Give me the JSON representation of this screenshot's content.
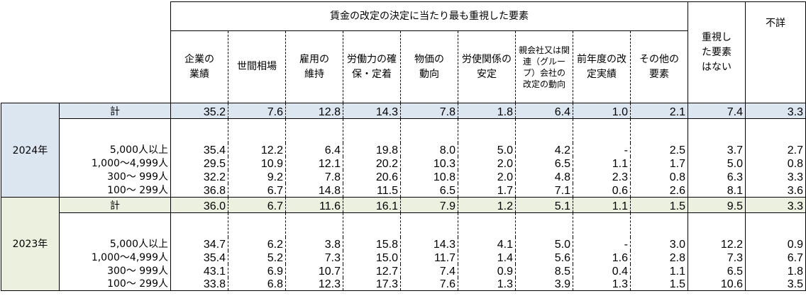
{
  "header": {
    "group_title": "賃金の改定の決定に当たり最も重視した要素",
    "columns": [
      "企業の業績",
      "世間相場",
      "雇用の維持",
      "労働力の確保・定着",
      "物価の動向",
      "労使関係の安定",
      "親会社又は関連（グループ）会社の改定の動向",
      "前年度の改定実績",
      "その他の要素"
    ],
    "no_factor": "重視した要素はない",
    "unknown": "不詳"
  },
  "sections": [
    {
      "year": "2024年",
      "total": {
        "label": "計",
        "values": [
          "35.2",
          "7.6",
          "12.8",
          "14.3",
          "7.8",
          "1.8",
          "6.4",
          "1.0",
          "2.1",
          "7.4",
          "3.3"
        ]
      },
      "rows": [
        {
          "label": "5,000人以上",
          "values": [
            "35.4",
            "12.2",
            "6.4",
            "19.8",
            "8.0",
            "5.0",
            "4.2",
            "-",
            "2.5",
            "3.7",
            "2.7"
          ]
        },
        {
          "label": "1,000～4,999人",
          "values": [
            "29.5",
            "10.9",
            "12.1",
            "20.2",
            "10.3",
            "2.0",
            "6.5",
            "1.1",
            "1.7",
            "5.0",
            "0.8"
          ]
        },
        {
          "label": "300～ 999人",
          "values": [
            "32.2",
            "9.2",
            "7.8",
            "20.6",
            "10.8",
            "2.0",
            "4.8",
            "2.3",
            "0.8",
            "6.3",
            "3.3"
          ]
        },
        {
          "label": "100～ 299人",
          "values": [
            "36.8",
            "6.7",
            "14.8",
            "11.5",
            "6.5",
            "1.7",
            "7.1",
            "0.6",
            "2.6",
            "8.1",
            "3.6"
          ]
        }
      ]
    },
    {
      "year": "2023年",
      "total": {
        "label": "計",
        "values": [
          "36.0",
          "6.7",
          "11.6",
          "16.1",
          "7.9",
          "1.2",
          "5.1",
          "1.1",
          "1.5",
          "9.5",
          "3.3"
        ]
      },
      "rows": [
        {
          "label": "5,000人以上",
          "values": [
            "34.7",
            "6.2",
            "3.8",
            "15.8",
            "14.3",
            "4.1",
            "5.0",
            "-",
            "3.0",
            "12.2",
            "0.9"
          ]
        },
        {
          "label": "1,000～4,999人",
          "values": [
            "35.4",
            "5.2",
            "7.3",
            "15.0",
            "11.7",
            "1.4",
            "5.6",
            "1.6",
            "2.8",
            "7.3",
            "6.7"
          ]
        },
        {
          "label": "300～ 999人",
          "values": [
            "43.1",
            "6.9",
            "10.7",
            "12.7",
            "7.4",
            "0.9",
            "8.5",
            "0.4",
            "1.1",
            "6.5",
            "1.8"
          ]
        },
        {
          "label": "100～ 299人",
          "values": [
            "33.8",
            "6.8",
            "12.3",
            "17.3",
            "7.6",
            "1.3",
            "3.9",
            "1.3",
            "1.5",
            "10.6",
            "3.5"
          ]
        }
      ]
    }
  ]
}
